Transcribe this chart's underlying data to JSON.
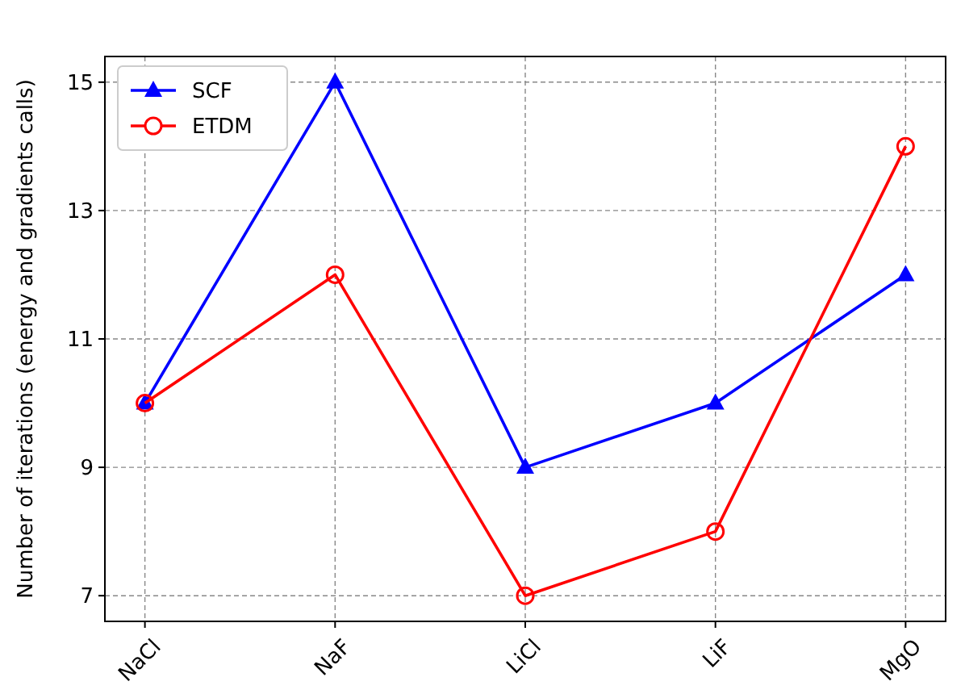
{
  "chart_data": {
    "type": "line",
    "ylabel": "Number of iterations (energy and gradients calls)",
    "categories": [
      "NaCl",
      "NaF",
      "LiCl",
      "LiF",
      "MgO"
    ],
    "series": [
      {
        "name": "SCF",
        "color": "#0000ff",
        "values": [
          10,
          15,
          9,
          10,
          12
        ],
        "marker": "triangle"
      },
      {
        "name": "ETDM",
        "color": "#ff0000",
        "values": [
          10,
          12,
          7,
          8,
          14
        ],
        "marker": "circle"
      }
    ],
    "ylim": [
      6.6,
      15.4
    ],
    "yticks": [
      7,
      9,
      11,
      13,
      15
    ],
    "grid": true,
    "legend": "top left",
    "line_style": "solid"
  }
}
